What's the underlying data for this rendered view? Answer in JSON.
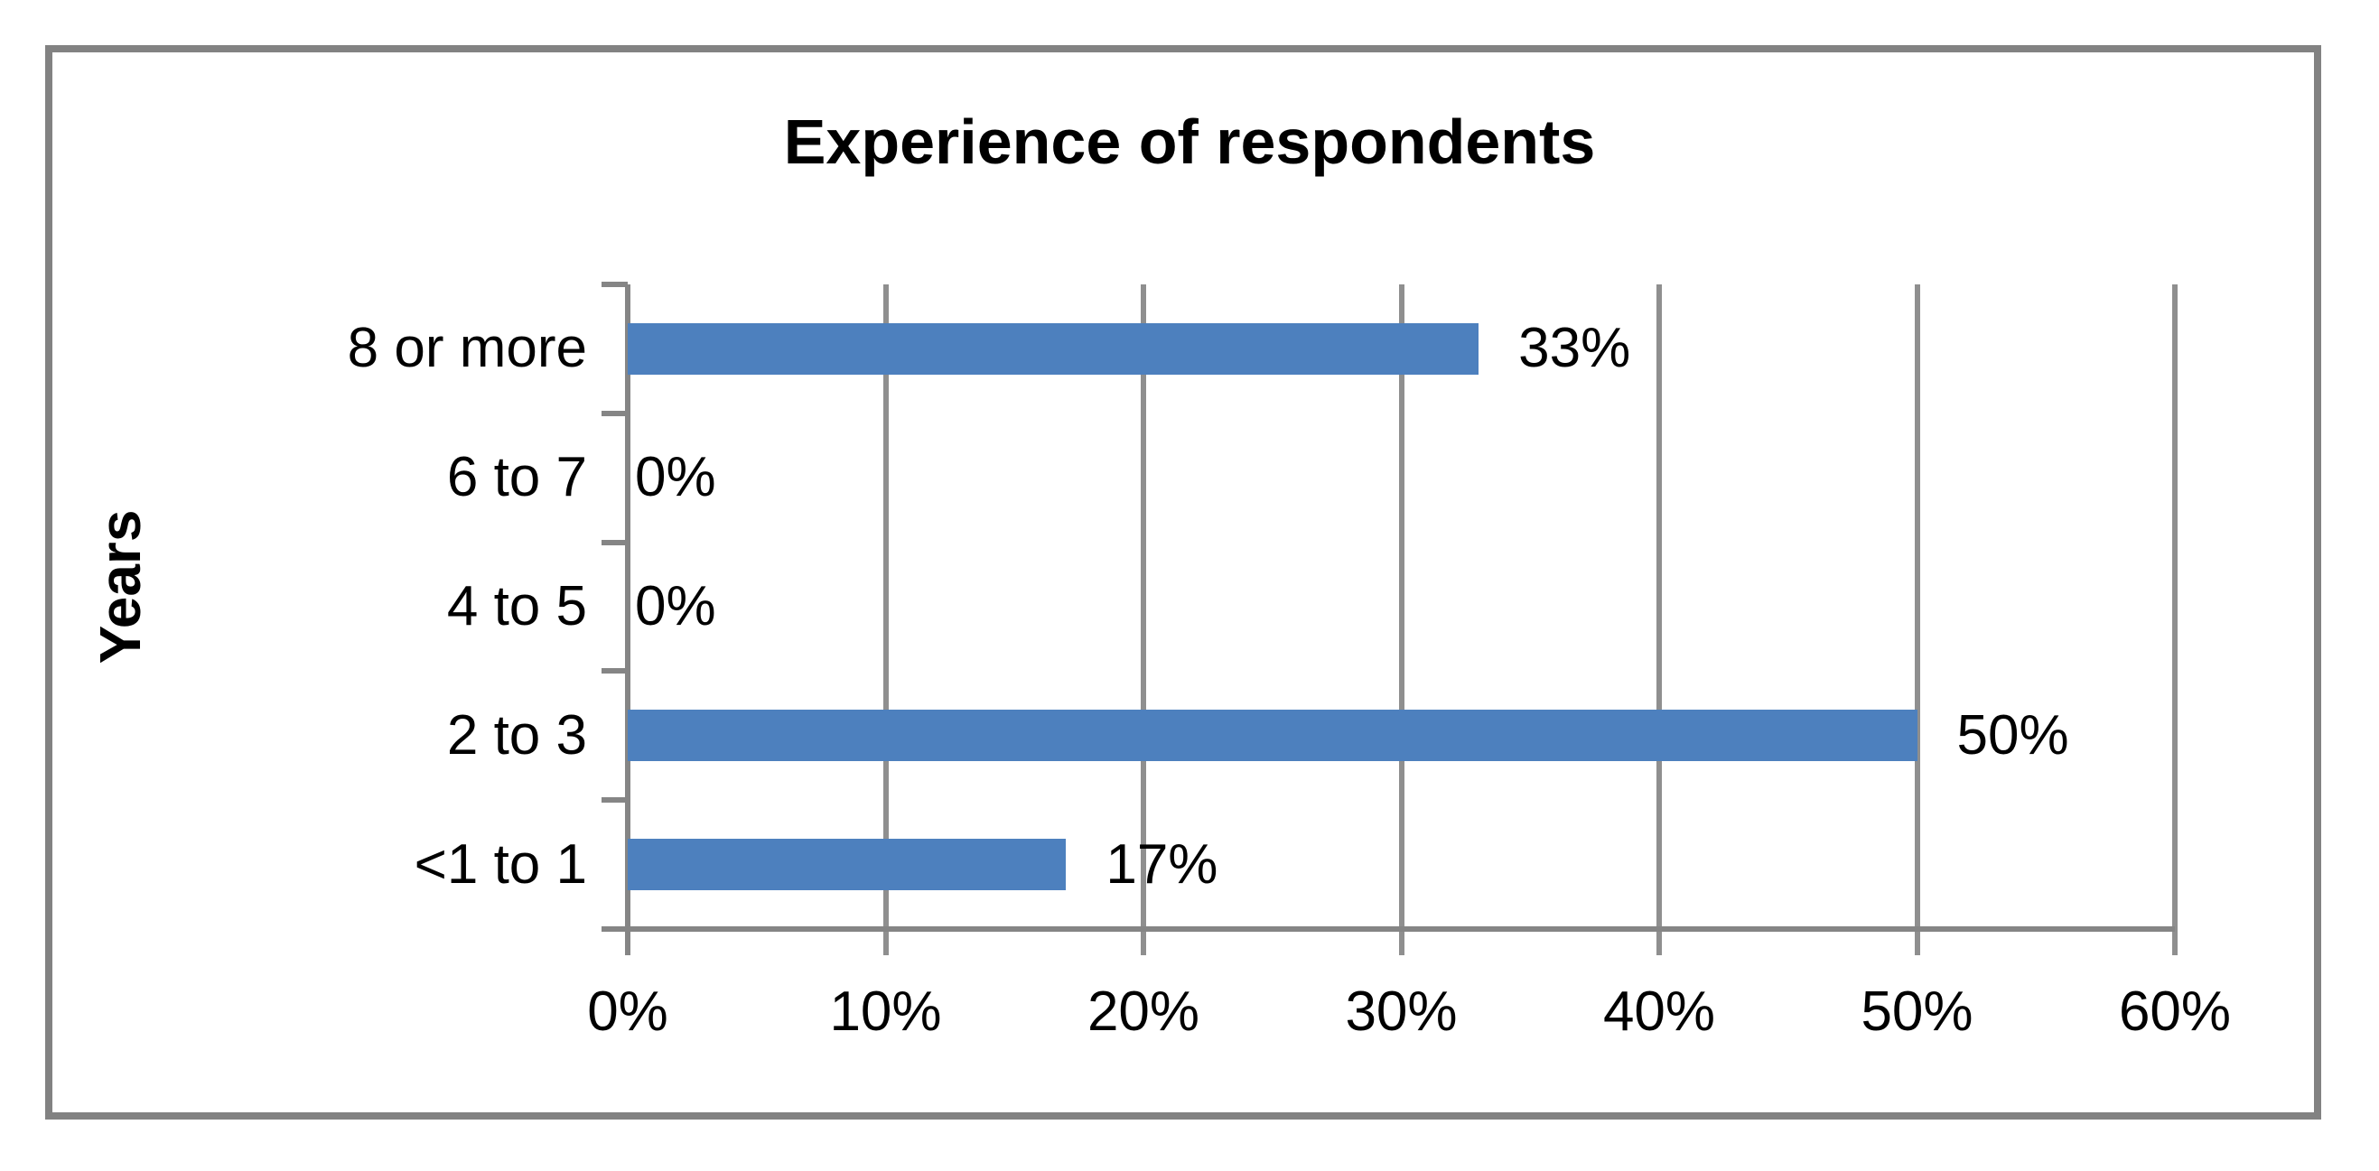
{
  "chart_data": {
    "type": "bar",
    "orientation": "horizontal",
    "title": "Experience of respondents",
    "ylabel": "Years",
    "xlabel": "",
    "categories": [
      "8 or more",
      "6 to 7",
      "4 to 5",
      "2 to 3",
      "<1 to 1"
    ],
    "values": [
      33,
      0,
      0,
      50,
      17
    ],
    "value_labels": [
      "33%",
      "0%",
      "0%",
      "50%",
      "17%"
    ],
    "xtick_labels": [
      "0%",
      "10%",
      "20%",
      "30%",
      "40%",
      "50%",
      "60%"
    ],
    "xlim": [
      0,
      60
    ],
    "grid": true,
    "legend": false,
    "bar_color": "#4D80BE",
    "axis_color": "#858585",
    "gridline_color": "#8F8F8F",
    "frame_color": "#828282",
    "text_color": "#000000"
  }
}
